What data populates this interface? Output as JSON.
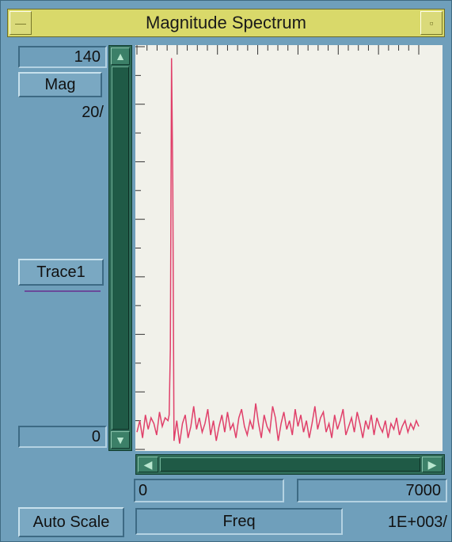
{
  "window": {
    "title": "Magnitude Spectrum",
    "minimize_glyph": "—",
    "maximize_glyph": "▫"
  },
  "y_axis": {
    "max_value": "140",
    "mode_label": "Mag",
    "scale_label": "20/",
    "min_value": "0"
  },
  "trace": {
    "label": "Trace1",
    "color": "#e0406a"
  },
  "x_axis": {
    "min_value": "0",
    "max_value": "7000",
    "label": "Freq",
    "scale_label": "1E+003/"
  },
  "controls": {
    "auto_scale_label": "Auto Scale"
  },
  "scrollbars": {
    "up_icon": "▲",
    "down_icon": "▼",
    "left_icon": "◀",
    "right_icon": "▶"
  },
  "chart_data": {
    "type": "line",
    "xlabel": "Freq",
    "ylabel": "Mag",
    "xlim": [
      0,
      7000
    ],
    "ylim": [
      0,
      140
    ],
    "grid": false,
    "series": [
      {
        "name": "Trace1",
        "color": "#e0406a",
        "x": [
          0,
          70,
          140,
          210,
          280,
          350,
          420,
          490,
          560,
          630,
          700,
          770,
          800,
          830,
          860,
          890,
          920,
          990,
          1060,
          1130,
          1200,
          1270,
          1340,
          1410,
          1480,
          1550,
          1620,
          1690,
          1760,
          1830,
          1900,
          1970,
          2040,
          2110,
          2180,
          2250,
          2320,
          2390,
          2460,
          2530,
          2600,
          2670,
          2740,
          2810,
          2880,
          2950,
          3020,
          3090,
          3160,
          3230,
          3300,
          3370,
          3440,
          3510,
          3580,
          3650,
          3720,
          3790,
          3860,
          3930,
          4000,
          4070,
          4140,
          4210,
          4280,
          4350,
          4420,
          4490,
          4560,
          4630,
          4700,
          4770,
          4840,
          4910,
          4980,
          5050,
          5120,
          5190,
          5260,
          5330,
          5400,
          5470,
          5540,
          5610,
          5680,
          5750,
          5820,
          5890,
          5960,
          6030,
          6100,
          6170,
          6240,
          6310,
          6380,
          6450,
          6520,
          6590,
          6660,
          6730,
          6800,
          6870,
          6940,
          7000
        ],
        "values": [
          6,
          10,
          4,
          12,
          7,
          11,
          9,
          5,
          13,
          8,
          11,
          10,
          12,
          35,
          136,
          92,
          3,
          10,
          2,
          9,
          12,
          4,
          8,
          15,
          7,
          11,
          6,
          9,
          14,
          5,
          10,
          3,
          8,
          12,
          6,
          13,
          7,
          9,
          4,
          11,
          14,
          8,
          5,
          10,
          7,
          16,
          9,
          4,
          12,
          8,
          6,
          15,
          11,
          3,
          9,
          13,
          7,
          10,
          5,
          14,
          8,
          12,
          6,
          10,
          4,
          9,
          15,
          7,
          11,
          13,
          6,
          9,
          4,
          12,
          7,
          10,
          14,
          5,
          8,
          11,
          6,
          13,
          9,
          4,
          10,
          7,
          12,
          5,
          11,
          8,
          6,
          10,
          4,
          9,
          7,
          11,
          5,
          8,
          10,
          6,
          9,
          7,
          10,
          8
        ]
      }
    ]
  }
}
